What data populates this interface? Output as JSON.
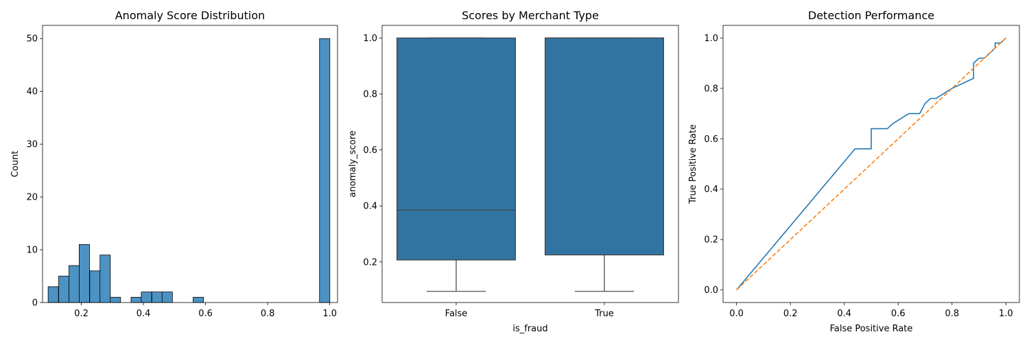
{
  "chart_data": [
    {
      "type": "histogram",
      "title": "Anomaly Score Distribution",
      "xlabel": "",
      "ylabel": "Count",
      "xlim": [
        0.075,
        1.025
      ],
      "ylim": [
        0,
        52.5
      ],
      "xticks": [
        0.2,
        0.4,
        0.6,
        0.8,
        1.0
      ],
      "xtick_labels": [
        "0.2",
        "0.4",
        "0.6",
        "0.8",
        "1.0"
      ],
      "yticks": [
        0,
        10,
        20,
        30,
        40,
        50
      ],
      "ytick_labels": [
        "0",
        "10",
        "20",
        "30",
        "40",
        "50"
      ],
      "bin_width": 0.0333,
      "bins": [
        {
          "start": 0.093,
          "count": 3
        },
        {
          "start": 0.127,
          "count": 5
        },
        {
          "start": 0.16,
          "count": 7
        },
        {
          "start": 0.193,
          "count": 11
        },
        {
          "start": 0.227,
          "count": 6
        },
        {
          "start": 0.26,
          "count": 9
        },
        {
          "start": 0.293,
          "count": 1
        },
        {
          "start": 0.36,
          "count": 1
        },
        {
          "start": 0.393,
          "count": 2
        },
        {
          "start": 0.427,
          "count": 2
        },
        {
          "start": 0.46,
          "count": 2
        },
        {
          "start": 0.56,
          "count": 1
        },
        {
          "start": 0.967,
          "count": 50
        }
      ],
      "color": "#4c92c3",
      "grid": false
    },
    {
      "type": "box",
      "title": "Scores by Merchant Type",
      "xlabel": "is_fraud",
      "ylabel": "anomaly_score",
      "ylim": [
        0.055,
        1.045
      ],
      "yticks": [
        0.2,
        0.4,
        0.6,
        0.8,
        1.0
      ],
      "ytick_labels": [
        "0.2",
        "0.4",
        "0.6",
        "0.8",
        "1.0"
      ],
      "categories": [
        "False",
        "True"
      ],
      "boxes": [
        {
          "category": "False",
          "whisker_low": 0.095,
          "q1": 0.207,
          "median": 0.385,
          "q3": 1.0,
          "whisker_high": 1.0
        },
        {
          "category": "True",
          "whisker_low": 0.095,
          "q1": 0.225,
          "median": 1.0,
          "q3": 1.0,
          "whisker_high": 1.0
        }
      ],
      "color": "#3274a1",
      "grid": false
    },
    {
      "type": "line",
      "title": "Detection Performance",
      "xlabel": "False Positive Rate",
      "ylabel": "True Positive Rate",
      "xlim": [
        -0.05,
        1.05
      ],
      "ylim": [
        -0.05,
        1.05
      ],
      "xticks": [
        0.0,
        0.2,
        0.4,
        0.6,
        0.8,
        1.0
      ],
      "xtick_labels": [
        "0.0",
        "0.2",
        "0.4",
        "0.6",
        "0.8",
        "1.0"
      ],
      "yticks": [
        0.0,
        0.2,
        0.4,
        0.6,
        0.8,
        1.0
      ],
      "ytick_labels": [
        "0.0",
        "0.2",
        "0.4",
        "0.6",
        "0.8",
        "1.0"
      ],
      "series": [
        {
          "color": "#1f77b4",
          "style": "solid",
          "x": [
            0,
            0.44,
            0.5,
            0.5,
            0.56,
            0.58,
            0.64,
            0.68,
            0.7,
            0.72,
            0.74,
            0.8,
            0.88,
            0.88,
            0.9,
            0.92,
            0.96,
            0.96,
            0.98,
            0.98,
            1.0
          ],
          "y": [
            0,
            0.56,
            0.56,
            0.64,
            0.64,
            0.66,
            0.7,
            0.7,
            0.74,
            0.76,
            0.76,
            0.8,
            0.84,
            0.9,
            0.92,
            0.92,
            0.96,
            0.98,
            0.98,
            0.98,
            1.0
          ]
        },
        {
          "color": "#ff7f0e",
          "style": "dashed",
          "x": [
            0,
            1
          ],
          "y": [
            0,
            1
          ]
        }
      ],
      "grid": false
    }
  ]
}
